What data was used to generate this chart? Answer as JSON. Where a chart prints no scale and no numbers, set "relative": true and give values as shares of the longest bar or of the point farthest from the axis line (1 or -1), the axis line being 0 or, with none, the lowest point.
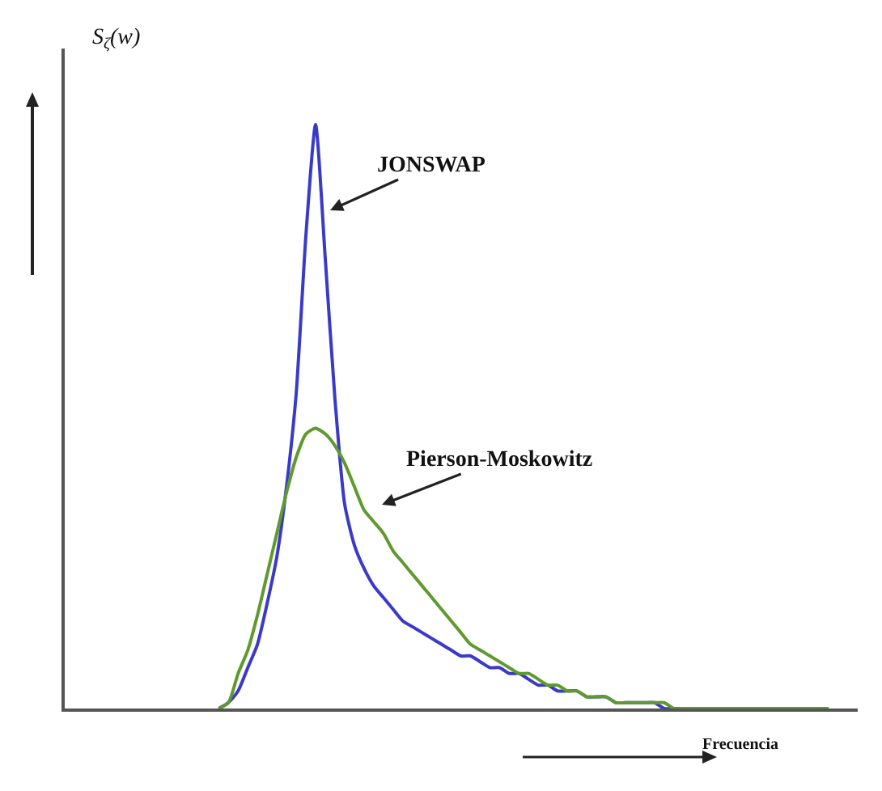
{
  "chart_data": {
    "type": "line",
    "relative": true,
    "ylabel": "S$_{ζ}$(w)",
    "xlabel": "Frecuencia",
    "categories": [
      null,
      null,
      null,
      null,
      null,
      null,
      null,
      null,
      null,
      null,
      null,
      null,
      null,
      null,
      null,
      null,
      null,
      null,
      null,
      null,
      null,
      null,
      null,
      null,
      null,
      null,
      null,
      null,
      null,
      null,
      null,
      null,
      null,
      null,
      null,
      null,
      null,
      null,
      null,
      null,
      null,
      null,
      null,
      null,
      null,
      null,
      null,
      null,
      null,
      null,
      null,
      null,
      null,
      null,
      null,
      null,
      null,
      null,
      null,
      null,
      null,
      null,
      null,
      null
    ],
    "series": [
      {
        "name": "JONSWAP",
        "color": "#3a3ac8",
        "values": [
          0,
          0.01,
          0.03,
          0.07,
          0.11,
          0.18,
          0.26,
          0.38,
          0.54,
          0.81,
          1,
          0.77,
          0.53,
          0.35,
          0.28,
          0.24,
          0.21,
          0.19,
          0.17,
          0.15,
          0.14,
          0.13,
          0.12,
          0.11,
          0.1,
          0.09,
          0.09,
          0.08,
          0.07,
          0.07,
          0.06,
          0.06,
          0.05,
          0.04,
          0.04,
          0.03,
          0.03,
          0.03,
          0.02,
          0.02,
          0.02,
          0.01,
          0.01,
          0.01,
          0.01,
          0.01,
          0,
          0,
          0,
          null,
          null,
          null,
          null,
          null,
          null,
          null,
          null,
          null,
          null,
          null,
          null,
          null,
          null,
          null
        ]
      },
      {
        "name": "Pierson-Moskowitz",
        "color": "#5f9a2e",
        "values": [
          0,
          0.01,
          0.06,
          0.1,
          0.16,
          0.23,
          0.3,
          0.37,
          0.43,
          0.47,
          0.48,
          0.47,
          0.45,
          0.42,
          0.38,
          0.34,
          0.32,
          0.3,
          0.27,
          0.25,
          0.23,
          0.21,
          0.19,
          0.17,
          0.15,
          0.13,
          0.11,
          0.1,
          0.09,
          0.08,
          0.07,
          0.06,
          0.06,
          0.05,
          0.04,
          0.04,
          0.03,
          0.03,
          0.02,
          0.02,
          0.02,
          0.01,
          0.01,
          0.01,
          0.01,
          0.01,
          0.01,
          0,
          0,
          0,
          0,
          0,
          0,
          0,
          0,
          0,
          0,
          0,
          0,
          0,
          0,
          0,
          0,
          0
        ]
      }
    ]
  }
}
